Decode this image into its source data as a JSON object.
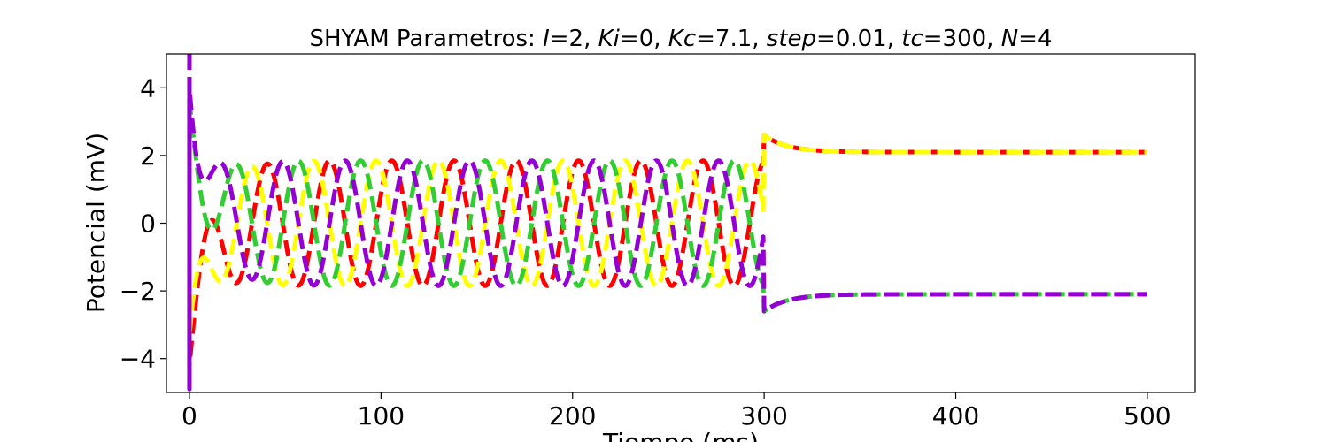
{
  "chart_data": {
    "type": "line",
    "title_prefix": "SHYAM  Parametros: ",
    "title_params": [
      {
        "name": "I",
        "value": "2"
      },
      {
        "name": "Ki",
        "value": "0"
      },
      {
        "name": "Kc",
        "value": "7.1"
      },
      {
        "name": "step",
        "value": "0.01"
      },
      {
        "name": "tc",
        "value": "300"
      },
      {
        "name": "N",
        "value": "4"
      }
    ],
    "xlabel": "Tiempo (ms)",
    "ylabel": "Potencial (mV)",
    "xlim": [
      -12,
      525
    ],
    "ylim": [
      -5,
      5
    ],
    "xticks": [
      0,
      100,
      200,
      300,
      400,
      500
    ],
    "yticks": [
      -4,
      -2,
      0,
      2,
      4
    ],
    "grid": false,
    "series": [
      {
        "color": "#ff0000",
        "start": -4.2,
        "phase": 0.0,
        "final": 2.1
      },
      {
        "color": "#ffff00",
        "start": -3.3,
        "phase": 0.25,
        "final": 2.1
      },
      {
        "color": "#32cd32",
        "start": 3.6,
        "phase": 0.5,
        "final": -2.1
      },
      {
        "color": "#9400d3",
        "start": 4.0,
        "phase": 0.75,
        "final": -2.1
      }
    ],
    "oscillation": {
      "amplitude": 1.85,
      "period": 32.5,
      "coupling_off_time": 300,
      "t_end": 500
    },
    "initial_spike": {
      "low": -4.9,
      "high": 5.0
    }
  }
}
